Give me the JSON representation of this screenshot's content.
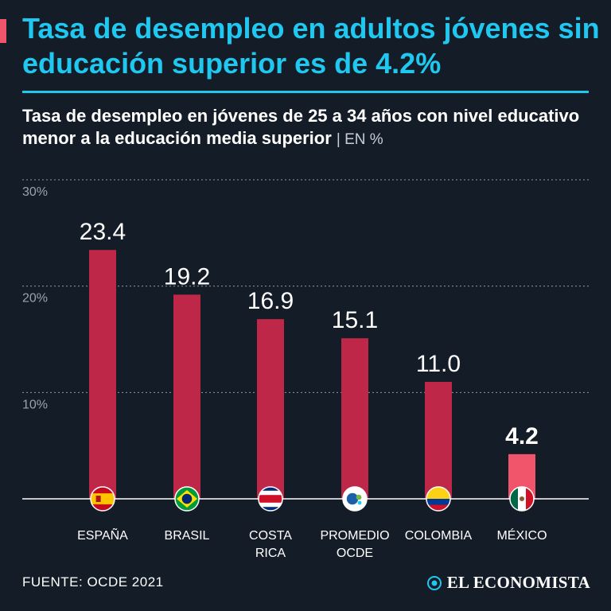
{
  "header": {
    "title": "Tasa de desempleo en adultos jóvenes sin educación superior es de 4.2%",
    "subtitle": "Tasa de desempleo en jóvenes de 25 a 34 años con nivel educativo menor a la educación media superior",
    "unit": "| EN %"
  },
  "colors": {
    "accent": "#1ec8f0",
    "bar": "#be2748",
    "highlight_bar": "#f0556b",
    "background": "#141d27"
  },
  "chart_data": {
    "type": "bar",
    "categories": [
      [
        "ESPAÑA"
      ],
      [
        "BRASIL"
      ],
      [
        "COSTA",
        "RICA"
      ],
      [
        "PROMEDIO",
        "OCDE"
      ],
      [
        "COLOMBIA"
      ],
      [
        "MÉXICO"
      ]
    ],
    "flags": [
      "spain-flag-icon",
      "brazil-flag-icon",
      "costa-rica-flag-icon",
      "oecd-logo-icon",
      "colombia-flag-icon",
      "mexico-flag-icon"
    ],
    "values": [
      23.4,
      19.2,
      16.9,
      15.1,
      11.0,
      4.2
    ],
    "value_labels": [
      "23.4",
      "19.2",
      "16.9",
      "15.1",
      "11.0",
      "4.2"
    ],
    "highlight_index": 5,
    "ylim": [
      0,
      30
    ],
    "yticks": [
      10,
      20,
      30
    ],
    "ytick_labels": [
      "10%",
      "20%",
      "30%"
    ],
    "grid": true,
    "title": "Tasa de desempleo en jóvenes de 25 a 34 años con nivel educativo menor a la educación media superior",
    "xlabel": "",
    "ylabel": "EN %"
  },
  "footer": {
    "source": "FUENTE: OCDE 2021",
    "brand": "EL ECONOMISTA"
  }
}
